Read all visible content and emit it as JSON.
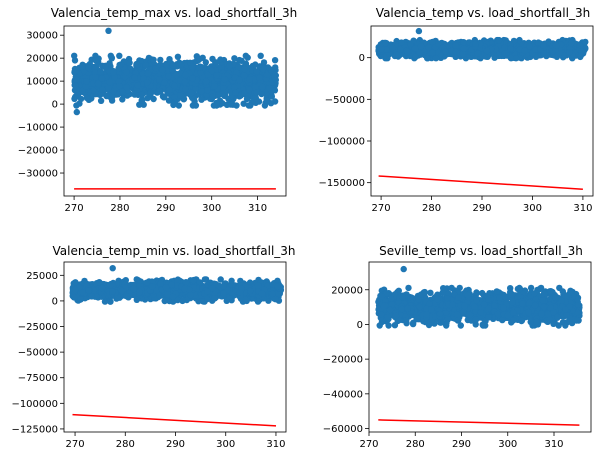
{
  "figure": {
    "colors": {
      "scatter": "#1f77b4",
      "fit_line": "#ff0000",
      "background": "#ffffff"
    }
  },
  "chart_data": [
    {
      "type": "scatter",
      "title": "Valencia_temp_max vs. load_shortfall_3h",
      "xlabel": "",
      "ylabel": "",
      "xlim": [
        267.8,
        316.2
      ],
      "ylim": [
        -40000,
        34000
      ],
      "xticks": [
        270,
        280,
        290,
        300,
        310
      ],
      "yticks": [
        -30000,
        -20000,
        -10000,
        0,
        10000,
        20000,
        30000
      ],
      "grid": false,
      "scatter_cloud": {
        "x_range": [
          270,
          314
        ],
        "y_center": 10000,
        "y_spread": 8500
      },
      "outliers": [
        {
          "x": 277.5,
          "y": 31904
        },
        {
          "x": 270.6,
          "y": -3500
        },
        {
          "x": 312,
          "y": 1500
        }
      ],
      "fit_line": {
        "x": [
          270,
          314
        ],
        "y": [
          -36900,
          -36900
        ]
      }
    },
    {
      "type": "scatter",
      "title": "Valencia_temp vs. load_shortfall_3h",
      "xlabel": "",
      "ylabel": "",
      "xlim": [
        268.0,
        312.0
      ],
      "ylim": [
        -166000,
        38000
      ],
      "xticks": [
        270,
        280,
        290,
        300,
        310
      ],
      "yticks": [
        -150000,
        -100000,
        -50000,
        0
      ],
      "grid": false,
      "scatter_cloud": {
        "x_range": [
          269.5,
          310.5
        ],
        "y_center": 10000,
        "y_spread": 8500
      },
      "outliers": [
        {
          "x": 277.5,
          "y": 31904
        }
      ],
      "fit_line": {
        "x": [
          269.5,
          310
        ],
        "y": [
          -142000,
          -158000
        ]
      }
    },
    {
      "type": "scatter",
      "title": "Valencia_temp_min vs. load_shortfall_3h",
      "xlabel": "",
      "ylabel": "",
      "xlim": [
        267.8,
        312.0
      ],
      "ylim": [
        -128000,
        38000
      ],
      "xticks": [
        270,
        280,
        290,
        300,
        310
      ],
      "yticks": [
        -125000,
        -100000,
        -75000,
        -50000,
        -25000,
        0,
        25000
      ],
      "grid": false,
      "scatter_cloud": {
        "x_range": [
          269.5,
          311
        ],
        "y_center": 10000,
        "y_spread": 8500
      },
      "outliers": [
        {
          "x": 277.5,
          "y": 31904
        }
      ],
      "fit_line": {
        "x": [
          269.5,
          310
        ],
        "y": [
          -111000,
          -122000
        ]
      }
    },
    {
      "type": "scatter",
      "title": "Seville_temp vs. load_shortfall_3h",
      "xlabel": "",
      "ylabel": "",
      "xlim": [
        270.0,
        318.0
      ],
      "ylim": [
        -62000,
        36000
      ],
      "xticks": [
        270,
        280,
        290,
        300,
        310
      ],
      "yticks": [
        -60000,
        -40000,
        -20000,
        0,
        20000
      ],
      "grid": false,
      "scatter_cloud": {
        "x_range": [
          272,
          315.5
        ],
        "y_center": 10000,
        "y_spread": 8500
      },
      "outliers": [
        {
          "x": 277.5,
          "y": 31904
        }
      ],
      "fit_line": {
        "x": [
          272,
          315.5
        ],
        "y": [
          -55000,
          -58000
        ]
      }
    }
  ]
}
